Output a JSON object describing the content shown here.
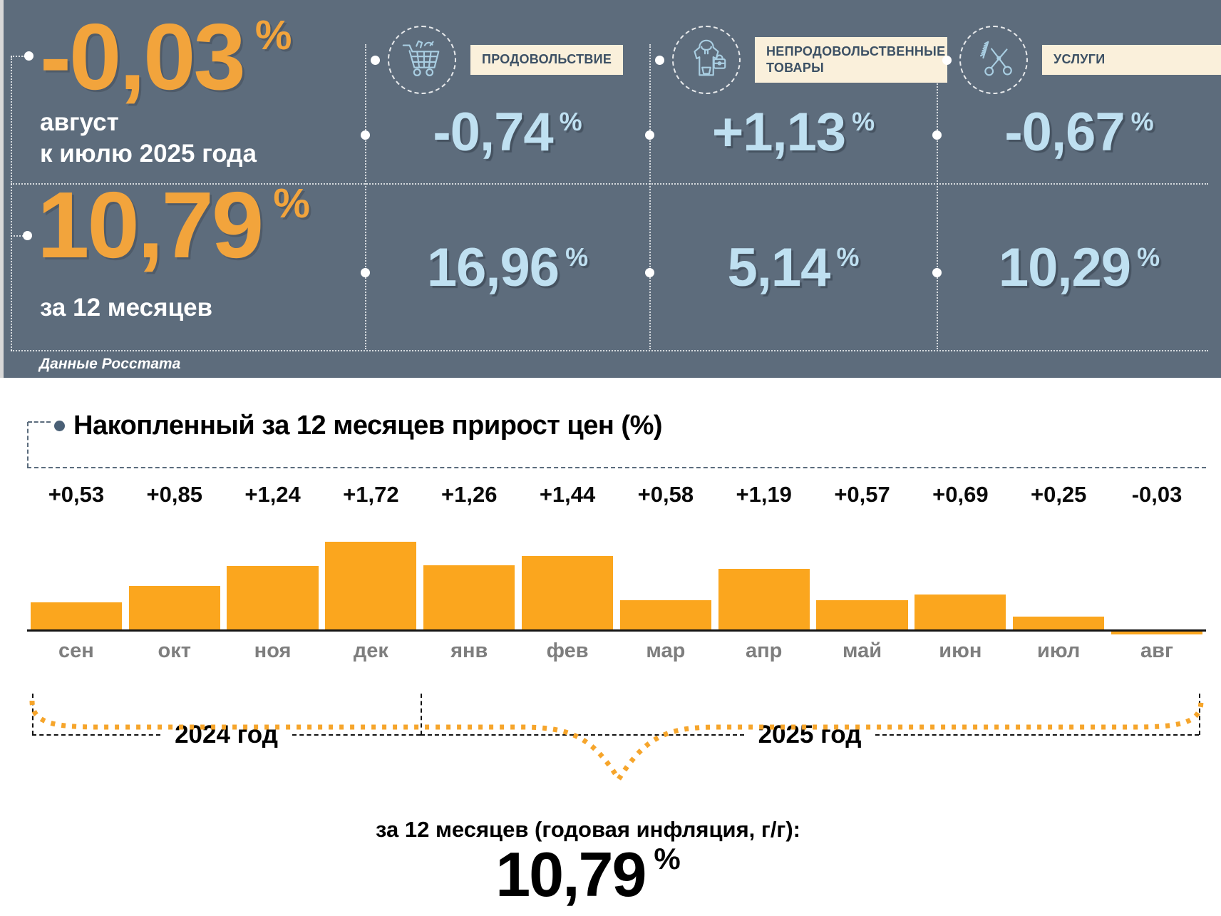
{
  "percent_sign": "%",
  "panel": {
    "monthly": {
      "value": "-0,03",
      "caption1": "август",
      "caption2": "к июлю 2025 года"
    },
    "annual": {
      "value": "10,79",
      "caption": "за 12 месяцев"
    },
    "source": "Данные Росстата",
    "categories": [
      {
        "label": "ПРОДОВОЛЬСТВИЕ",
        "icon": "grocery-cart-icon",
        "monthly": "-0,74",
        "annual": "16,96"
      },
      {
        "label": "НЕПРОДОВОЛЬСТВЕННЫЕ ТОВАРЫ",
        "icon": "clothing-bag-icon",
        "monthly": "+1,13",
        "annual": "5,14"
      },
      {
        "label": "УСЛУГИ",
        "icon": "scissors-comb-icon",
        "monthly": "-0,67",
        "annual": "10,29"
      }
    ]
  },
  "chart_data": {
    "type": "bar",
    "title": "Накопленный за 12 месяцев прирост цен (%)",
    "categories": [
      "сен",
      "окт",
      "ноя",
      "дек",
      "янв",
      "фев",
      "мар",
      "апр",
      "май",
      "июн",
      "июл",
      "авг"
    ],
    "values": [
      0.53,
      0.85,
      1.24,
      1.72,
      1.26,
      1.44,
      0.58,
      1.19,
      0.57,
      0.69,
      0.25,
      -0.03
    ],
    "value_labels": [
      "+0,53",
      "+0,85",
      "+1,24",
      "+1,72",
      "+1,26",
      "+1,44",
      "+0,58",
      "+1,19",
      "+0,57",
      "+0,69",
      "+0,25",
      "-0,03"
    ],
    "bar_color": "#FBA61E",
    "ylim": [
      -0.1,
      1.8
    ],
    "grid": false,
    "legend": "none",
    "year_groups": [
      {
        "label": "2024 год",
        "from": "сен",
        "to": "дек"
      },
      {
        "label": "2025 год",
        "from": "янв",
        "to": "авг"
      }
    ]
  },
  "footer": {
    "annual_note": "за 12 месяцев (годовая инфляция, г/г):",
    "annual_value": "10,79"
  },
  "colors": {
    "panel_bg": "#5D6C7C",
    "accent_orange": "#F2A43C",
    "bar_orange": "#FBA61E",
    "value_blue": "#BFE0F1",
    "label_bg": "#FAF0DB",
    "label_text": "#3C5064"
  }
}
